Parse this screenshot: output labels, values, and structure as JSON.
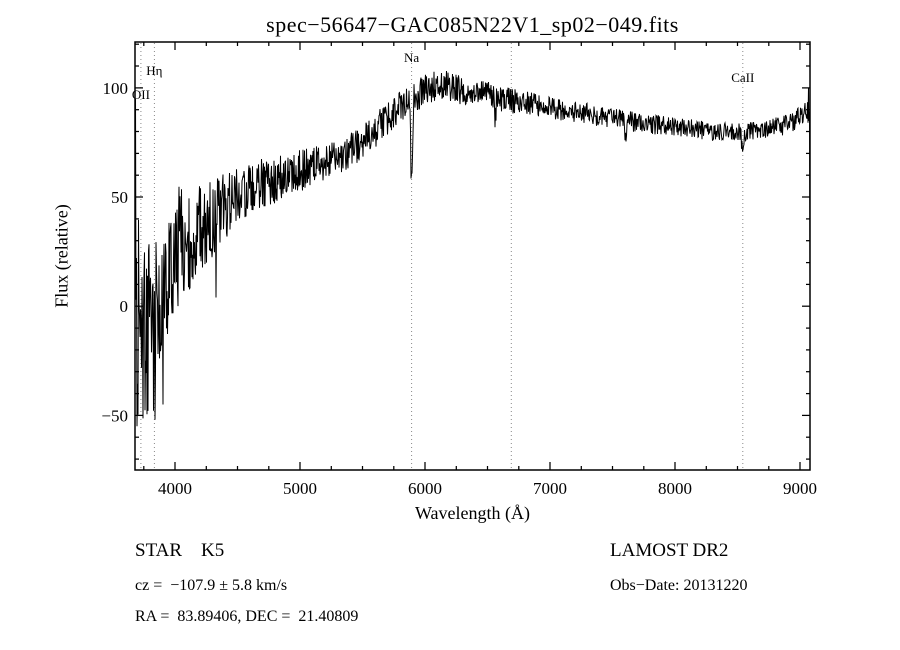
{
  "annotations": {
    "class_line": "STAR    K5",
    "survey": "LAMOST DR2",
    "cz_line": "cz =  −107.9 ± 5.8 km/s",
    "obs_date_line": "Obs−Date: 20131220",
    "ra_dec_line": "RA =  83.89406, DEC =  21.40809"
  },
  "chart_data": {
    "type": "line",
    "title": "spec−56647−GAC085N22V1_sp02−049.fits",
    "xlabel": "Wavelength (Å)",
    "ylabel": "Flux (relative)",
    "xlim": [
      3680,
      9080
    ],
    "ylim": [
      -75,
      121
    ],
    "x_major_ticks": [
      4000,
      5000,
      6000,
      7000,
      8000,
      9000
    ],
    "x_minor_step": 250,
    "y_major_ticks": [
      -50,
      0,
      50,
      100
    ],
    "y_minor_step": 10,
    "grid": false,
    "line_color": "#000000",
    "dotted_line_color": "#888888",
    "spectral_lines": [
      {
        "label": "OII",
        "wavelength": 3727,
        "label_flux": 97
      },
      {
        "label": "Hη",
        "wavelength": 3835,
        "label_flux": 108
      },
      {
        "label": "Na",
        "wavelength": 5893,
        "label_flux": 114
      },
      {
        "label": "",
        "wavelength": 6690,
        "label_flux": 0
      },
      {
        "label": "CaII",
        "wavelength": 8542,
        "label_flux": 105
      }
    ],
    "series": {
      "name": "spectrum",
      "sample_step": 4,
      "seed": 20131220,
      "continuum": [
        [
          3680,
          20
        ],
        [
          3700,
          0
        ],
        [
          3730,
          -12
        ],
        [
          3760,
          -18
        ],
        [
          3790,
          -10
        ],
        [
          3820,
          -2
        ],
        [
          3860,
          8
        ],
        [
          3900,
          12
        ],
        [
          3950,
          18
        ],
        [
          4000,
          24
        ],
        [
          4050,
          28
        ],
        [
          4100,
          30
        ],
        [
          4200,
          35
        ],
        [
          4300,
          40
        ],
        [
          4400,
          46
        ],
        [
          4500,
          50
        ],
        [
          4600,
          53
        ],
        [
          4700,
          56
        ],
        [
          4800,
          58
        ],
        [
          4900,
          60
        ],
        [
          5000,
          62
        ],
        [
          5100,
          64
        ],
        [
          5200,
          66
        ],
        [
          5300,
          68
        ],
        [
          5400,
          71
        ],
        [
          5500,
          75
        ],
        [
          5600,
          80
        ],
        [
          5700,
          86
        ],
        [
          5800,
          91
        ],
        [
          5900,
          95
        ],
        [
          6000,
          99
        ],
        [
          6100,
          101
        ],
        [
          6200,
          101
        ],
        [
          6300,
          99
        ],
        [
          6400,
          98
        ],
        [
          6500,
          97
        ],
        [
          6600,
          95
        ],
        [
          6700,
          94
        ],
        [
          6800,
          93
        ],
        [
          6900,
          92
        ],
        [
          7000,
          91
        ],
        [
          7100,
          90
        ],
        [
          7200,
          89
        ],
        [
          7300,
          88
        ],
        [
          7500,
          86
        ],
        [
          7700,
          84
        ],
        [
          8000,
          82
        ],
        [
          8300,
          80
        ],
        [
          8600,
          80
        ],
        [
          8800,
          82
        ],
        [
          8950,
          84
        ],
        [
          9040,
          90
        ],
        [
          9080,
          88
        ]
      ],
      "noise_amplitude": [
        [
          3680,
          65
        ],
        [
          3720,
          48
        ],
        [
          3780,
          42
        ],
        [
          3850,
          40
        ],
        [
          3950,
          30
        ],
        [
          4050,
          26
        ],
        [
          4150,
          22
        ],
        [
          4300,
          18
        ],
        [
          4500,
          14
        ],
        [
          4800,
          11
        ],
        [
          5100,
          9
        ],
        [
          5400,
          8
        ],
        [
          5700,
          8
        ],
        [
          6000,
          7
        ],
        [
          6300,
          7
        ],
        [
          6600,
          6
        ],
        [
          7000,
          5
        ],
        [
          7400,
          5
        ],
        [
          7900,
          4.5
        ],
        [
          8400,
          4.5
        ],
        [
          8800,
          4.5
        ],
        [
          9080,
          5
        ]
      ],
      "features": [
        {
          "x": 3835,
          "width": 10,
          "depth": -20
        },
        {
          "x": 4040,
          "width": 6,
          "depth": 35
        },
        {
          "x": 5893,
          "width": 9,
          "depth": -40
        },
        {
          "x": 6563,
          "width": 7,
          "depth": -10
        },
        {
          "x": 7605,
          "width": 10,
          "depth": -8
        },
        {
          "x": 8542,
          "width": 10,
          "depth": -10
        }
      ],
      "pins": [
        [
          3684,
          95,
          2
        ],
        [
          3696,
          -55,
          2
        ],
        [
          3904,
          -45,
          2
        ],
        [
          4328,
          4,
          2
        ],
        [
          9068,
          100,
          2
        ],
        [
          9080,
          4,
          2
        ]
      ]
    }
  }
}
